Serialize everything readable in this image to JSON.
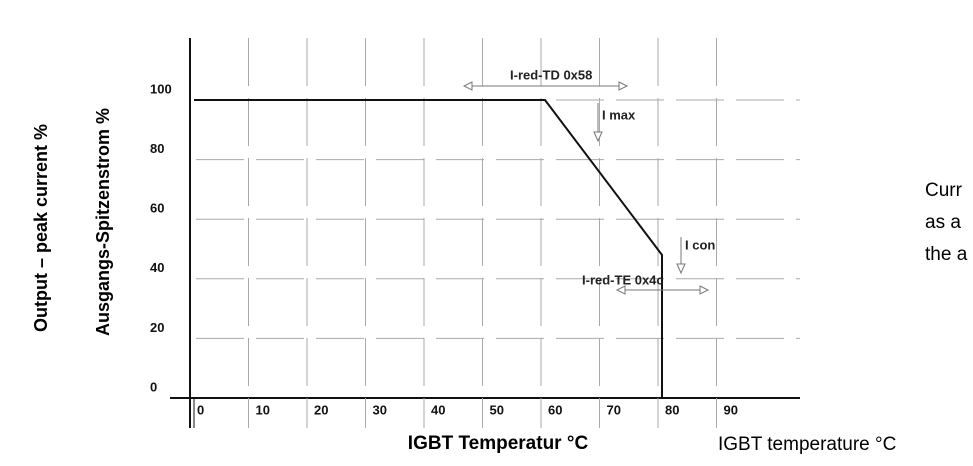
{
  "chart_data": {
    "type": "line",
    "ylabel": "Ausgangs-Spitzenstrom %",
    "ylabel2": "Output – peak current %",
    "xlabel": "IGBT Temperatur  °C",
    "xlabel2": "IGBT temperature °C",
    "x": [
      0,
      60,
      80,
      80
    ],
    "series": [
      {
        "name": "Ausgangs-Spitzenstrom",
        "color": "#111111",
        "values": [
          100,
          100,
          48,
          0
        ]
      }
    ],
    "xlim": [
      0,
      100
    ],
    "ylim": [
      0,
      100
    ],
    "xticks": [
      0,
      10,
      20,
      30,
      40,
      50,
      60,
      70,
      80,
      90
    ],
    "yticks": [
      0,
      20,
      40,
      60,
      80,
      100
    ],
    "grid": true,
    "annotations": [
      "I-red-TD  0x58",
      "I max",
      "I con",
      "I-red-TE  0x4c"
    ],
    "side_text": [
      "Curr",
      "as a",
      "the a"
    ]
  }
}
